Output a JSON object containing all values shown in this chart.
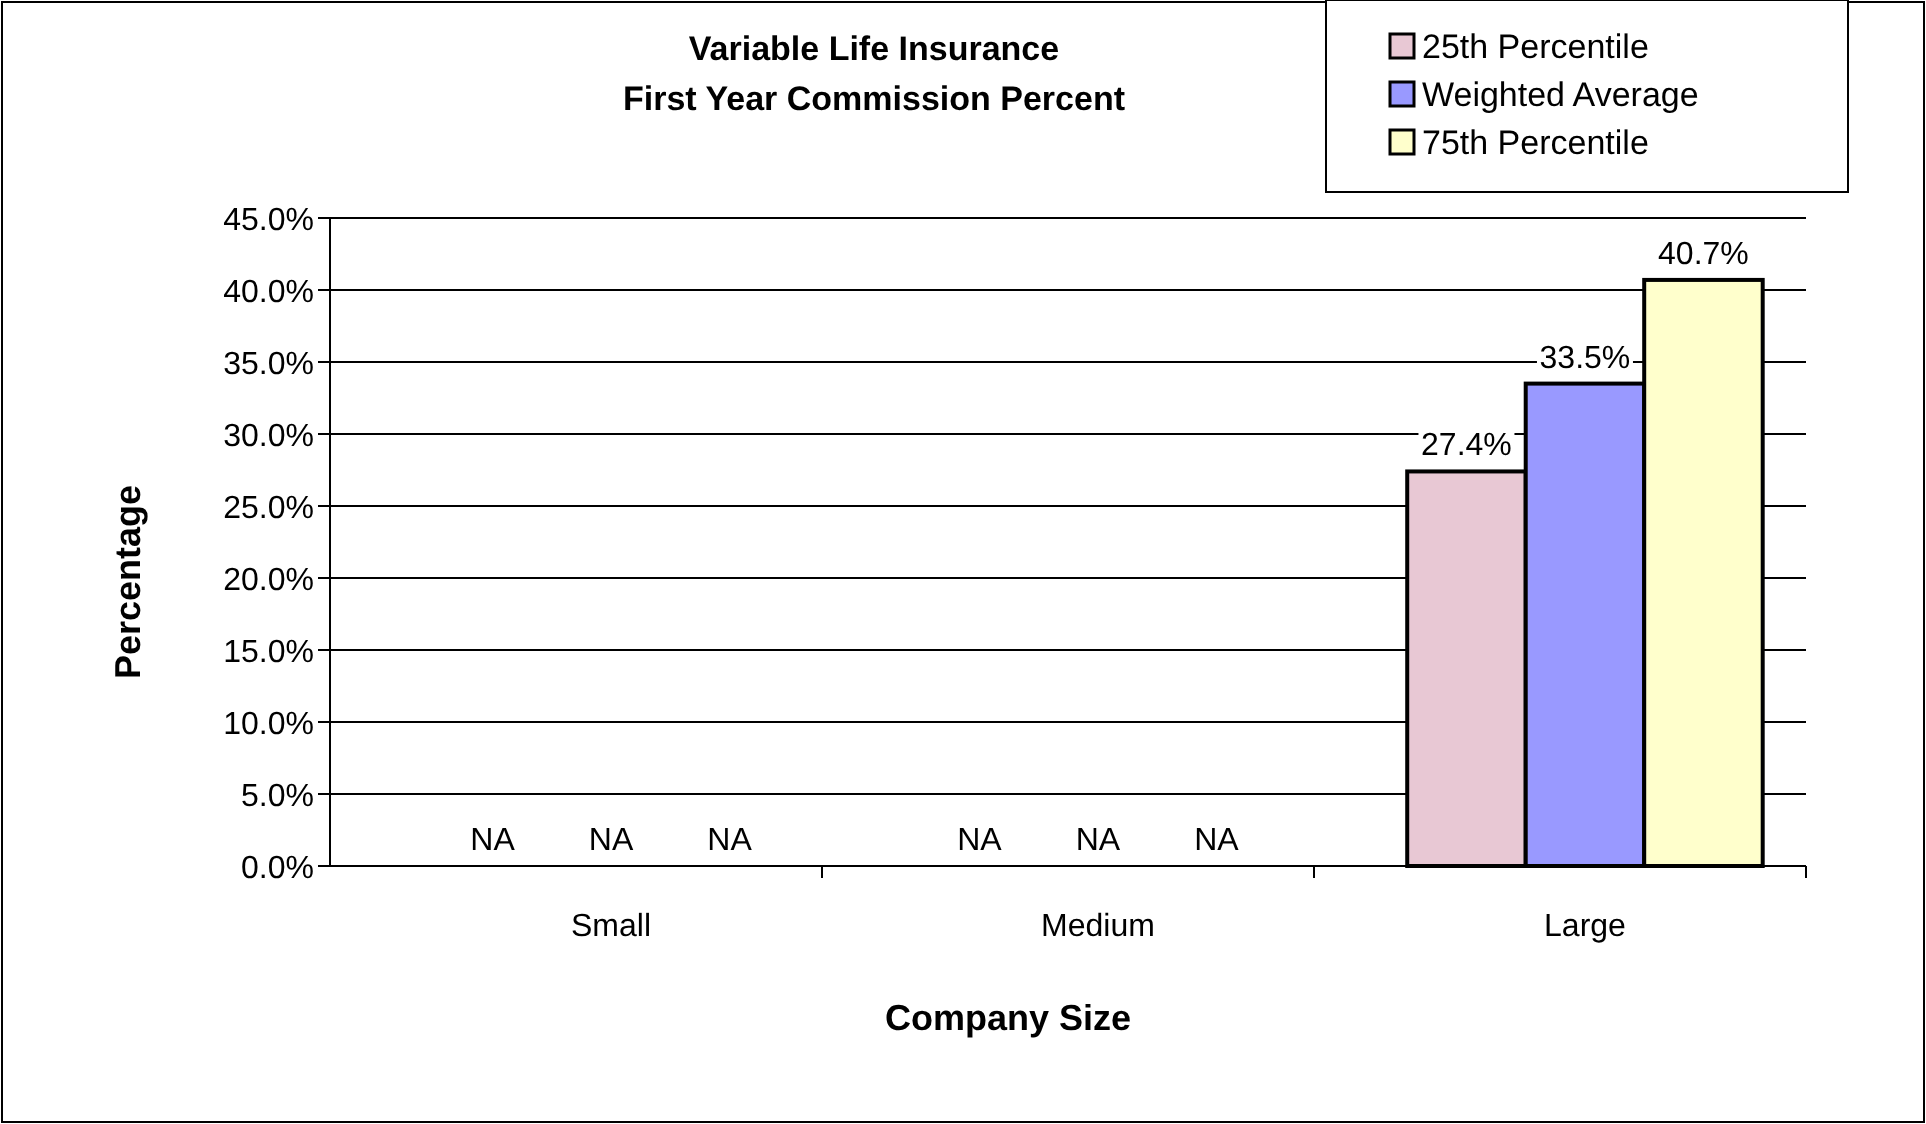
{
  "chart_data": {
    "type": "bar",
    "title": "Variable Life Insurance\nFirst Year Commission Percent",
    "xlabel": "Company Size",
    "ylabel": "Percentage",
    "categories": [
      "Small",
      "Medium",
      "Large"
    ],
    "series": [
      {
        "name": "25th Percentile",
        "color": "#e8c8d4",
        "values": [
          null,
          null,
          27.4
        ],
        "value_labels": [
          "NA",
          "NA",
          "27.4%"
        ]
      },
      {
        "name": "Weighted Average",
        "color": "#9999ff",
        "values": [
          null,
          null,
          33.5
        ],
        "value_labels": [
          "NA",
          "NA",
          "33.5%"
        ]
      },
      {
        "name": "75th Percentile",
        "color": "#ffffcc",
        "values": [
          null,
          null,
          40.7
        ],
        "value_labels": [
          "NA",
          "NA",
          "40.7%"
        ]
      }
    ],
    "ylim": [
      0,
      45
    ],
    "yticks": [
      {
        "value": 0,
        "label": "0.0%"
      },
      {
        "value": 5,
        "label": "5.0%"
      },
      {
        "value": 10,
        "label": "10.0%"
      },
      {
        "value": 15,
        "label": "15.0%"
      },
      {
        "value": 20,
        "label": "20.0%"
      },
      {
        "value": 25,
        "label": "25.0%"
      },
      {
        "value": 30,
        "label": "30.0%"
      },
      {
        "value": 35,
        "label": "35.0%"
      },
      {
        "value": 40,
        "label": "40.0%"
      },
      {
        "value": 45,
        "label": "45.0%"
      }
    ],
    "grid": "y",
    "legend": "top right"
  }
}
